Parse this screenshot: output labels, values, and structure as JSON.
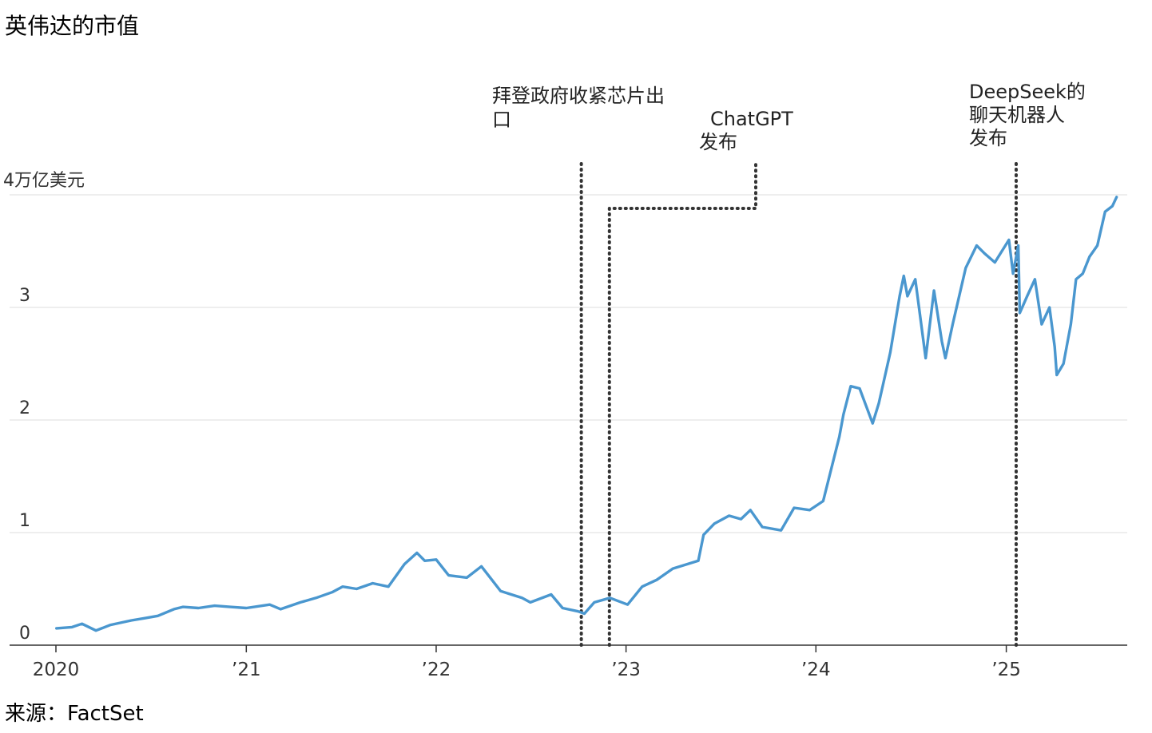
{
  "chart_data": {
    "type": "line",
    "title": "英伟达的市值",
    "source": "来源：FactSet",
    "y_unit_label": "4万亿美元",
    "ylim": [
      0,
      4
    ],
    "yticks": [
      {
        "value": 0,
        "label": "0"
      },
      {
        "value": 1,
        "label": "1"
      },
      {
        "value": 2,
        "label": "2"
      },
      {
        "value": 3,
        "label": "3"
      },
      {
        "value": 4,
        "label": "4万亿美元"
      }
    ],
    "xlim": [
      "2020-01-01",
      "2025-08-05"
    ],
    "xticks": [
      {
        "value": "2020-01-01",
        "label": "2020"
      },
      {
        "value": "2021-01-01",
        "label": "’21"
      },
      {
        "value": "2022-01-01",
        "label": "’22"
      },
      {
        "value": "2023-01-01",
        "label": "’23"
      },
      {
        "value": "2024-01-01",
        "label": "’24"
      },
      {
        "value": "2025-01-01",
        "label": "’25"
      }
    ],
    "grid": true,
    "line_color": "#4a97cf",
    "series": [
      {
        "name": "",
        "x": [
          "2020-01-02",
          "2020-02-01",
          "2020-02-20",
          "2020-03-18",
          "2020-04-15",
          "2020-05-25",
          "2020-06-20",
          "2020-07-15",
          "2020-08-15",
          "2020-09-01",
          "2020-10-01",
          "2020-11-01",
          "2020-12-01",
          "2021-01-01",
          "2021-02-15",
          "2021-03-08",
          "2021-04-15",
          "2021-05-15",
          "2021-06-15",
          "2021-07-05",
          "2021-08-01",
          "2021-09-01",
          "2021-10-01",
          "2021-11-01",
          "2021-11-25",
          "2021-12-10",
          "2022-01-01",
          "2022-01-25",
          "2022-03-01",
          "2022-03-29",
          "2022-05-05",
          "2022-06-15",
          "2022-07-01",
          "2022-08-10",
          "2022-09-01",
          "2022-10-01",
          "2022-10-13",
          "2022-11-01",
          "2022-12-01",
          "2023-01-04",
          "2023-02-01",
          "2023-03-01",
          "2023-04-01",
          "2023-05-20",
          "2023-05-30",
          "2023-06-20",
          "2023-07-18",
          "2023-08-10",
          "2023-08-28",
          "2023-09-20",
          "2023-10-26",
          "2023-11-20",
          "2023-12-20",
          "2024-01-15",
          "2024-02-15",
          "2024-02-23",
          "2024-03-08",
          "2024-03-25",
          "2024-04-19",
          "2024-05-01",
          "2024-05-23",
          "2024-06-10",
          "2024-06-18",
          "2024-06-25",
          "2024-07-10",
          "2024-07-30",
          "2024-08-15",
          "2024-08-30",
          "2024-09-06",
          "2024-09-20",
          "2024-10-15",
          "2024-11-05",
          "2024-11-20",
          "2024-12-10",
          "2025-01-06",
          "2025-01-14",
          "2025-01-24",
          "2025-01-27",
          "2025-02-10",
          "2025-02-25",
          "2025-03-10",
          "2025-03-25",
          "2025-04-04",
          "2025-04-08",
          "2025-04-21",
          "2025-05-05",
          "2025-05-15",
          "2025-05-28",
          "2025-06-10",
          "2025-06-25",
          "2025-07-10",
          "2025-07-24",
          "2025-08-01"
        ],
        "values": [
          0.15,
          0.16,
          0.19,
          0.13,
          0.18,
          0.22,
          0.24,
          0.26,
          0.32,
          0.34,
          0.33,
          0.35,
          0.34,
          0.33,
          0.36,
          0.32,
          0.38,
          0.42,
          0.47,
          0.52,
          0.5,
          0.55,
          0.52,
          0.72,
          0.82,
          0.75,
          0.76,
          0.62,
          0.6,
          0.7,
          0.48,
          0.42,
          0.38,
          0.45,
          0.33,
          0.3,
          0.28,
          0.38,
          0.42,
          0.36,
          0.52,
          0.58,
          0.68,
          0.75,
          0.98,
          1.08,
          1.15,
          1.12,
          1.2,
          1.05,
          1.02,
          1.22,
          1.2,
          1.28,
          1.85,
          2.05,
          2.3,
          2.28,
          1.97,
          2.15,
          2.6,
          3.1,
          3.28,
          3.1,
          3.25,
          2.55,
          3.15,
          2.7,
          2.55,
          2.85,
          3.35,
          3.55,
          3.48,
          3.4,
          3.6,
          3.3,
          3.55,
          2.95,
          3.1,
          3.25,
          2.85,
          3.0,
          2.65,
          2.4,
          2.5,
          2.85,
          3.25,
          3.3,
          3.45,
          3.55,
          3.85,
          3.9,
          3.98
        ]
      }
    ],
    "annotations": [
      {
        "label_lines": [
          "拜登政府收紧芯片出",
          "口"
        ],
        "date": "2022-10-07"
      },
      {
        "label_lines": [
          "ChatGPT",
          "发布"
        ],
        "date": "2022-11-30"
      },
      {
        "label_lines": [
          "DeepSeek的",
          "聊天机器人",
          "发布"
        ],
        "date": "2025-01-20"
      }
    ]
  }
}
